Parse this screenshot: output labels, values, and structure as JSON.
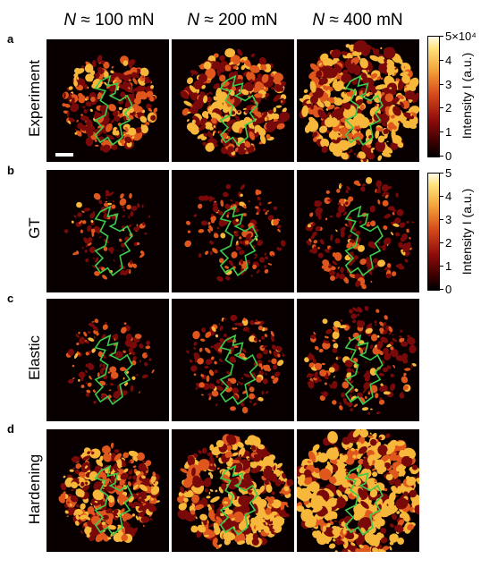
{
  "column_titles": [
    {
      "var": "N",
      "rest": " ≈ 100 mN"
    },
    {
      "var": "N",
      "rest": " ≈ 200 mN"
    },
    {
      "var": "N",
      "rest": " ≈ 400 mN"
    }
  ],
  "rows": [
    {
      "letter": "a",
      "label": "Experiment",
      "coverage": [
        0.42,
        0.55,
        0.72
      ],
      "radius": [
        0.38,
        0.42,
        0.48
      ]
    },
    {
      "letter": "b",
      "label": "GT",
      "coverage": [
        0.1,
        0.16,
        0.24
      ],
      "radius": [
        0.36,
        0.4,
        0.44
      ]
    },
    {
      "letter": "c",
      "label": "Elastic",
      "coverage": [
        0.14,
        0.2,
        0.28
      ],
      "radius": [
        0.36,
        0.4,
        0.45
      ]
    },
    {
      "letter": "d",
      "label": "Hardening",
      "coverage": [
        0.55,
        0.66,
        0.8
      ],
      "radius": [
        0.4,
        0.46,
        0.52
      ]
    }
  ],
  "colorbar_top": {
    "ticks": [
      "0",
      "1",
      "2",
      "3",
      "4",
      "5×10⁴"
    ],
    "label": "Intensity I (a.u.)"
  },
  "colorbar_bottom": {
    "ticks": [
      "0",
      "1",
      "2",
      "3",
      "4",
      "5"
    ],
    "label": "Intensity I (a.u.)"
  },
  "colors": {
    "background": "#080000",
    "hot_low": "#7a0a0a",
    "hot_mid": "#e0571d",
    "hot_high": "#f7b73a",
    "contour": "#3ccc4c"
  }
}
